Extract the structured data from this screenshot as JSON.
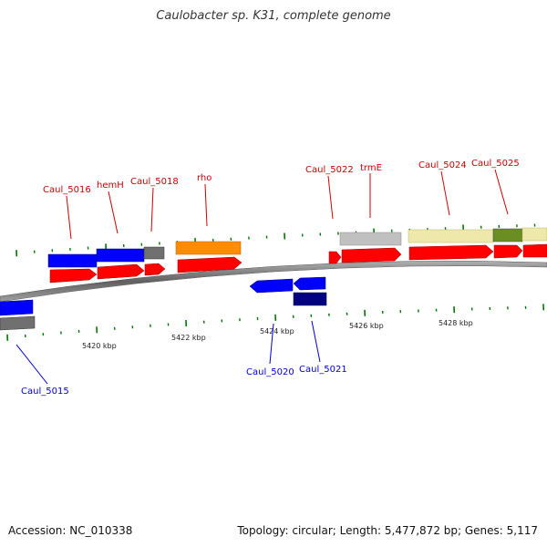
{
  "title": "Caulobacter sp. K31, complete genome",
  "footer": {
    "accession": "Accession: NC_010338",
    "stats": "Topology: circular; Length: 5,477,872 bp; Genes: 5,117"
  },
  "colors": {
    "plus_label": "#cc0000",
    "minus_label": "#0000cc",
    "tick": "#007700",
    "backbone": "#808080",
    "cds": "#ff0000",
    "blue_gene": "#0000ff",
    "navy_gene": "#000080",
    "gray_gene": "#808080",
    "light_gray_gene": "#c0c0c0",
    "orange_gene": "#ff8c00",
    "khaki_gene": "#eee8aa",
    "olive_gene": "#6b8e23"
  },
  "scale_labels": [
    "5420 kbp",
    "5422 kbp",
    "5424 kbp",
    "5426 kbp",
    "5428 kbp"
  ],
  "gene_labels": {
    "top": [
      "Caul_5016",
      "hemH",
      "Caul_5018",
      "rho",
      "Caul_5022",
      "trmE",
      "Caul_5024",
      "Caul_5025"
    ],
    "bottom": [
      "Caul_5015",
      "Caul_5020",
      "Caul_5021"
    ]
  }
}
